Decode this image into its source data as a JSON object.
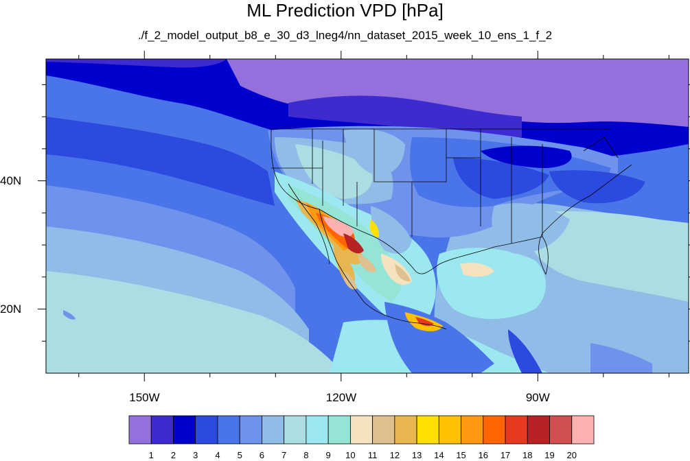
{
  "title": "ML Prediction VPD [hPa]",
  "subtitle": "./f_2_model_output_b8_e_30_d3_lneg4/nn_dataset_2015_week_10_ens_1_f_2",
  "map": {
    "projection": "cylindrical-equidistant",
    "lon_range": [
      -165,
      -67
    ],
    "lat_range": [
      10,
      59
    ],
    "lon_ticks": [
      {
        "value": -150,
        "label": "150W"
      },
      {
        "value": -120,
        "label": "120W"
      },
      {
        "value": -90,
        "label": "90W"
      }
    ],
    "lat_ticks": [
      {
        "value": 40,
        "label": "40N"
      },
      {
        "value": 20,
        "label": "20N"
      }
    ],
    "minor_lon_ticks": [
      -160,
      -140,
      -130,
      -110,
      -100,
      -80,
      -70
    ],
    "minor_lat_ticks": [
      15,
      25,
      30,
      35,
      45,
      50,
      55
    ]
  },
  "colorbar": {
    "colors": [
      "#9370db",
      "#3e2bd0",
      "#0000cd",
      "#2c4ade",
      "#4a75e8",
      "#6f92ec",
      "#90bce8",
      "#abdde3",
      "#9be8f0",
      "#94e5d6",
      "#f5e3c0",
      "#dfc090",
      "#e8b650",
      "#ffe000",
      "#ffc000",
      "#ff9910",
      "#ff6600",
      "#e83820",
      "#b82224",
      "#d05050",
      "#ffb0b0"
    ],
    "labels": [
      "1",
      "2",
      "3",
      "4",
      "5",
      "6",
      "7",
      "8",
      "9",
      "10",
      "11",
      "12",
      "13",
      "14",
      "15",
      "16",
      "17",
      "18",
      "19",
      "20"
    ]
  }
}
